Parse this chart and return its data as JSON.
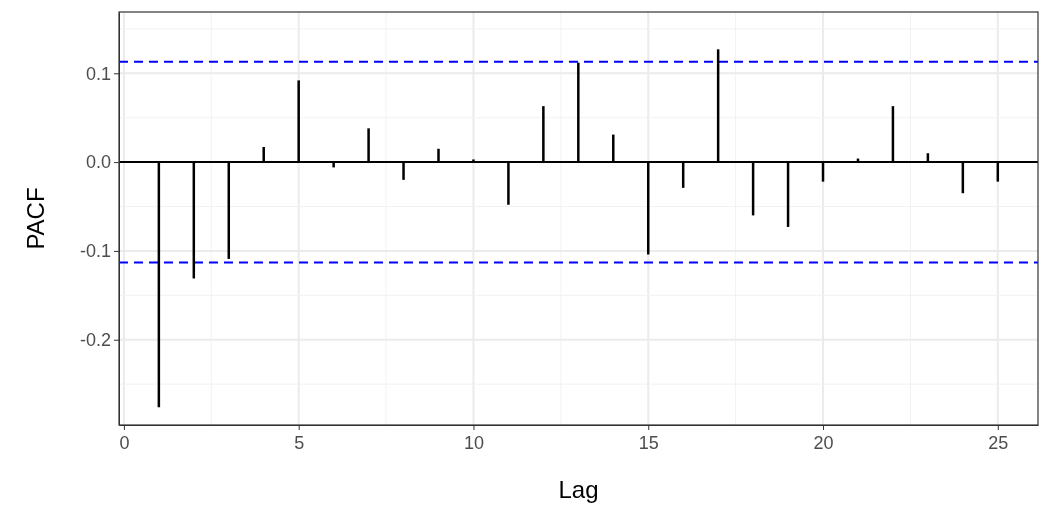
{
  "chart_data": {
    "type": "bar",
    "xlabel": "Lag",
    "ylabel": "PACF",
    "x": [
      1,
      2,
      3,
      4,
      5,
      6,
      7,
      8,
      9,
      10,
      11,
      12,
      13,
      14,
      15,
      16,
      17,
      18,
      19,
      20,
      21,
      22,
      23,
      24,
      25
    ],
    "values": [
      -0.276,
      -0.131,
      -0.109,
      0.017,
      0.092,
      -0.006,
      0.038,
      -0.02,
      0.015,
      0.003,
      -0.048,
      0.063,
      0.112,
      0.031,
      -0.104,
      -0.029,
      0.127,
      -0.06,
      -0.073,
      -0.022,
      0.004,
      0.063,
      0.01,
      -0.035,
      -0.022
    ],
    "color": "#000000",
    "xlim": [
      -0.14,
      26.15
    ],
    "xticks": [
      0,
      5,
      10,
      15,
      20,
      25
    ],
    "ylim": [
      -0.296,
      0.169
    ],
    "yticks": [
      {
        "value": -0.2,
        "label": "-0.2"
      },
      {
        "value": -0.1,
        "label": "-0.1"
      },
      {
        "value": 0,
        "label": "0.0"
      },
      {
        "value": 0.1,
        "label": "0.1"
      }
    ],
    "grid": true,
    "ref_lines": [
      {
        "axis": "y",
        "value": 0,
        "color": "#000000",
        "line_style": "solid"
      },
      {
        "axis": "y",
        "value": 0.113,
        "color": "#0000ff",
        "line_style": "dashed"
      },
      {
        "axis": "y",
        "value": -0.113,
        "color": "#0000ff",
        "line_style": "dashed"
      }
    ]
  }
}
